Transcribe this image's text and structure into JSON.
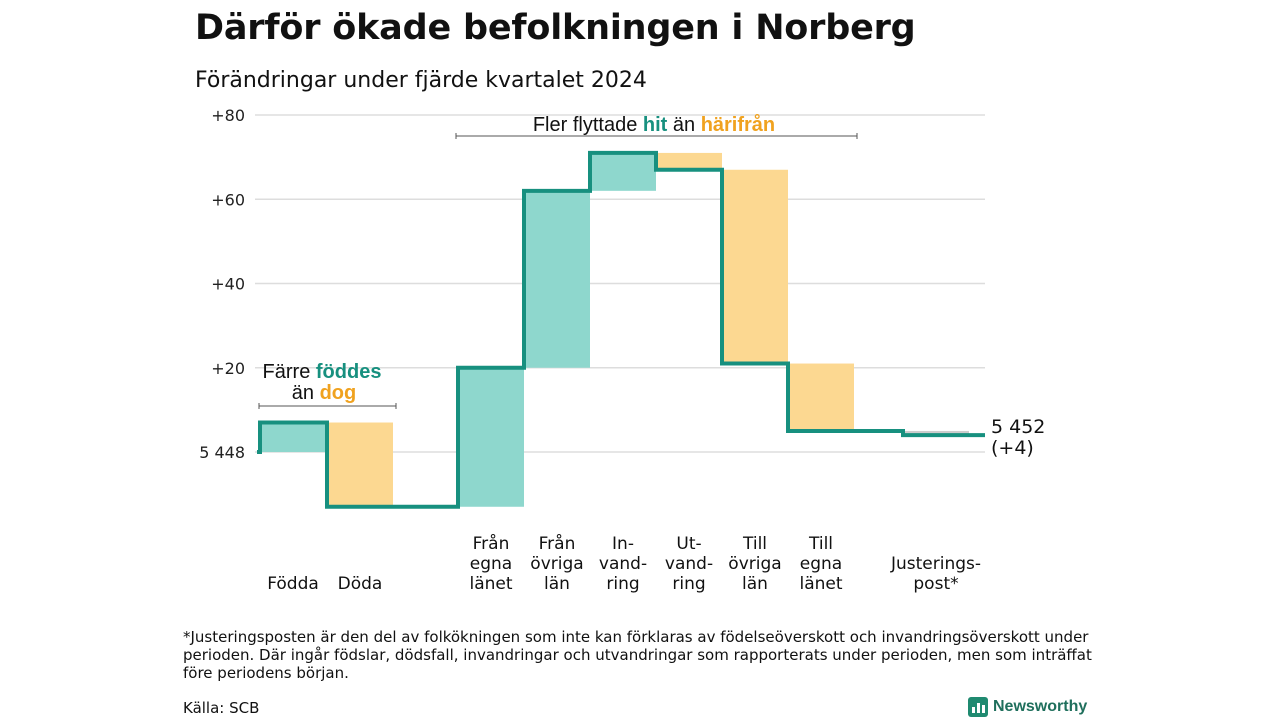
{
  "title": "Därför ökade befolkningen i Norberg",
  "subtitle": "Förändringar under fjärde kvartalet 2024",
  "footnote": "*Justeringsposten är den del av folkökningen som inte kan förklaras av födelseöverskott och invandringsöverskott under perioden. Där ingår födslar, dödsfall, invandringar och utvandringar som rapporterats under perioden, men som inträffat före periodens början.",
  "source": "Källa: SCB",
  "logo_text": "Newsworthy",
  "colors": {
    "increase": "#8ed7cd",
    "decrease": "#fcd891",
    "line": "#17907f",
    "teal_text": "#17907f",
    "orange_text": "#f0a21f",
    "grid": "#dddddd",
    "adjust": "#cccccc"
  },
  "chart_data": {
    "type": "waterfall",
    "base_value": 5448,
    "base_label": "5 448",
    "end_value": 5452,
    "end_label": [
      "5 452",
      "(+4)"
    ],
    "y_ticks": [
      {
        "value": 20,
        "label": "+20"
      },
      {
        "value": 40,
        "label": "+40"
      },
      {
        "value": 60,
        "label": "+60"
      },
      {
        "value": 80,
        "label": "+80"
      }
    ],
    "ylim": [
      -13,
      80
    ],
    "grid": true,
    "steps": [
      {
        "category": [
          "Födda"
        ],
        "value": 7
      },
      {
        "category": [
          "Döda"
        ],
        "value": -20
      },
      {
        "category": [
          "Från",
          "egna",
          "länet"
        ],
        "value": 33
      },
      {
        "category": [
          "Från",
          "övriga",
          "län"
        ],
        "value": 42
      },
      {
        "category": [
          "In-",
          "vand-",
          "ring"
        ],
        "value": 9
      },
      {
        "category": [
          "Ut-",
          "vand-",
          "ring"
        ],
        "value": -4
      },
      {
        "category": [
          "Till",
          "övriga",
          "län"
        ],
        "value": -46
      },
      {
        "category": [
          "Till",
          "egna",
          "länet"
        ],
        "value": -16
      },
      {
        "category": [
          "Justerings-",
          "post*"
        ],
        "value": -1
      }
    ],
    "annotations": [
      {
        "parts": [
          {
            "text": "Färre ",
            "color": "dark"
          },
          {
            "text": "föddes",
            "color": "teal"
          }
        ],
        "parts2": [
          {
            "text": "än ",
            "color": "dark"
          },
          {
            "text": "dog",
            "color": "orange"
          }
        ]
      },
      {
        "parts": [
          {
            "text": "Fler flyttade ",
            "color": "dark"
          },
          {
            "text": "hit",
            "color": "teal"
          },
          {
            "text": " än ",
            "color": "dark"
          },
          {
            "text": "härifrån",
            "color": "orange"
          }
        ]
      }
    ]
  }
}
